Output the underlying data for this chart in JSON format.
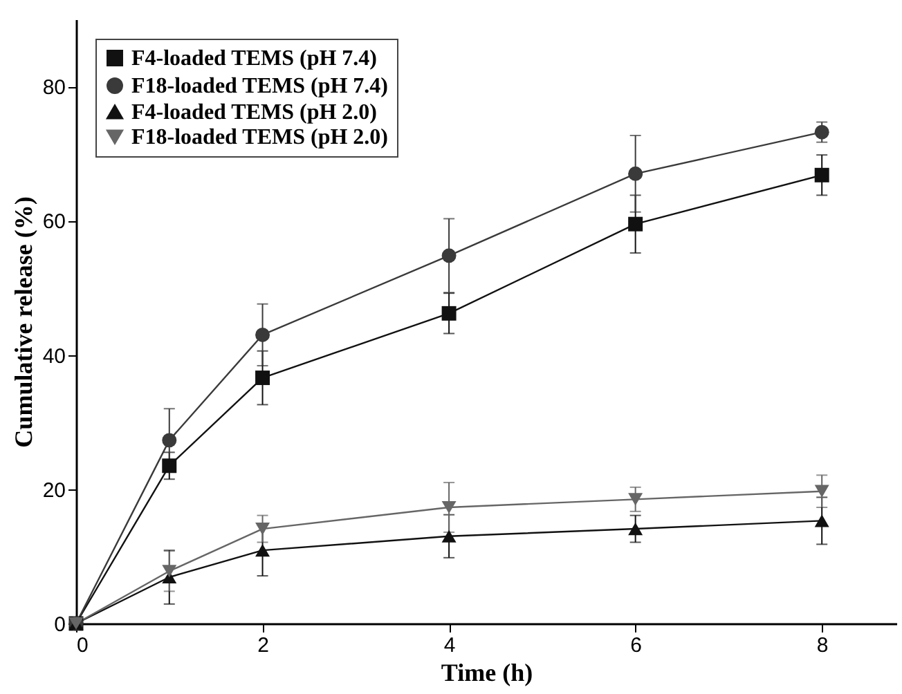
{
  "chart_data": {
    "type": "line",
    "xlabel": "Time (h)",
    "ylabel": "Cumulative release (%)",
    "x": [
      0,
      1,
      2,
      4,
      6,
      8
    ],
    "xlim": [
      0,
      8.8
    ],
    "xticks": [
      0,
      2,
      4,
      6,
      8
    ],
    "ylim": [
      0,
      90
    ],
    "yticks": [
      0,
      20,
      40,
      60,
      80
    ],
    "grid": false,
    "legend": "top left",
    "series": [
      {
        "name": "F4-loaded TEMS (pH 7.4)",
        "color": "#111111",
        "marker": "square",
        "values": [
          0,
          23.5,
          36.6,
          46.2,
          59.5,
          66.8
        ],
        "errors": [
          null,
          2,
          4,
          3,
          4.3,
          3
        ]
      },
      {
        "name": "F18-loaded TEMS (pH 7.4)",
        "color": "#3a3a3a",
        "marker": "circle",
        "values": [
          0,
          27.3,
          43.0,
          54.8,
          67.0,
          73.2
        ],
        "errors": [
          null,
          4.7,
          4.6,
          5.5,
          5.7,
          1.5
        ]
      },
      {
        "name": "F4-loaded TEMS (pH 2.0)",
        "color": "#111111",
        "marker": "triangle",
        "values": [
          0,
          6.9,
          10.9,
          13.0,
          14.1,
          15.3
        ],
        "errors": [
          null,
          4,
          3.8,
          3.2,
          2,
          3.5
        ]
      },
      {
        "name": "F18-loaded TEMS (pH 2.0)",
        "color": "#666666",
        "marker": "triangle-down",
        "values": [
          0,
          7.8,
          14.1,
          17.3,
          18.5,
          19.7
        ],
        "errors": [
          null,
          3,
          2,
          3.7,
          1.8,
          2.4
        ]
      }
    ]
  }
}
